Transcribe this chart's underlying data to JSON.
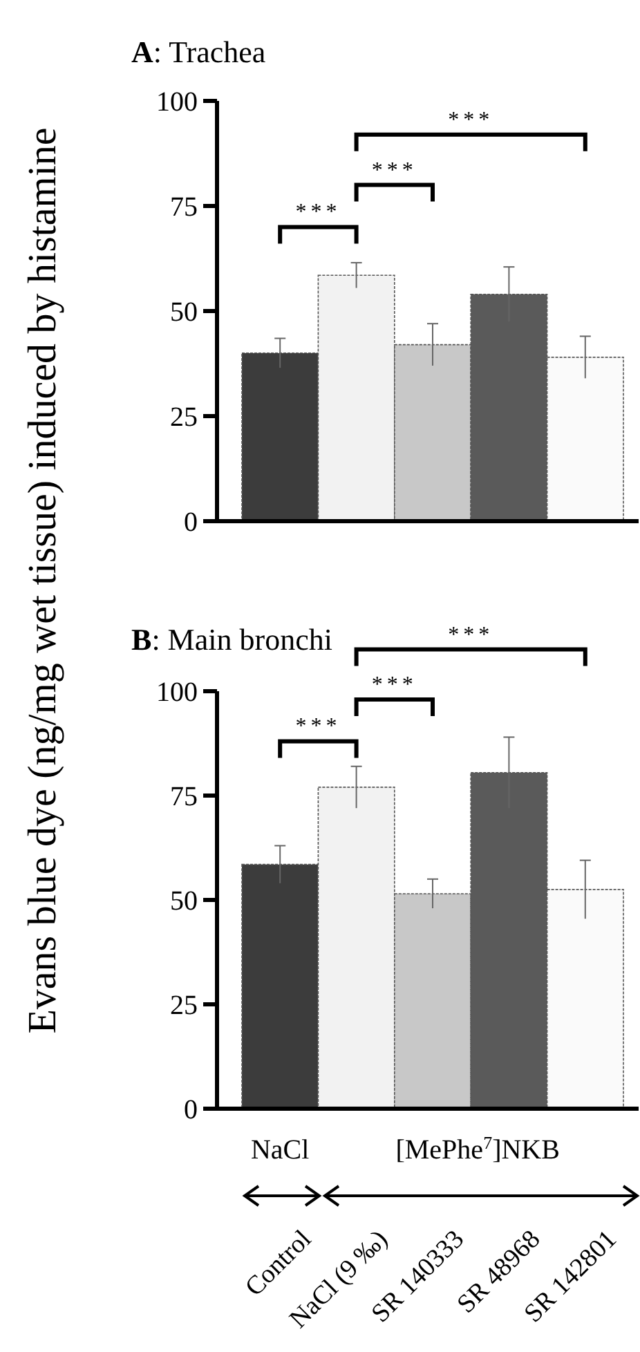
{
  "chart_data": [
    {
      "type": "bar",
      "title": "A: Trachea",
      "ylabel": "Evans blue dye (ng/mg wet tissue) induced by histamine",
      "categories": [
        null,
        null,
        null,
        null,
        null
      ],
      "values": [
        40,
        58.5,
        42,
        54,
        39
      ],
      "errors": [
        3.5,
        3,
        5,
        6.5,
        5
      ],
      "colors": [
        "#3c3c3c",
        "#f2f2f2",
        "#c8c8c8",
        "#5a5a5a",
        "#fafafa"
      ],
      "ylim": [
        0,
        100
      ],
      "yticks": [
        0,
        25,
        50,
        75,
        100
      ],
      "tick_labels": "y",
      "annotations": [
        "***",
        "***",
        "***"
      ]
    },
    {
      "type": "bar",
      "title": "B: Main bronchi",
      "categories": [
        "Control",
        "NaCl (9 ‰)",
        "SR 140333",
        "SR 48968",
        "SR 142801"
      ],
      "values": [
        58.5,
        77,
        51.5,
        80.5,
        52.5
      ],
      "errors": [
        4.5,
        5,
        3.5,
        8.5,
        7
      ],
      "colors": [
        "#3c3c3c",
        "#f2f2f2",
        "#c8c8c8",
        "#5a5a5a",
        "#fafafa"
      ],
      "ylim": [
        0,
        100
      ],
      "yticks": [
        0,
        25,
        50,
        75,
        100
      ],
      "annotations": [
        "***",
        "***",
        "***",
        "NaCl",
        "[MePhe$^{7}$]NKB"
      ]
    }
  ]
}
